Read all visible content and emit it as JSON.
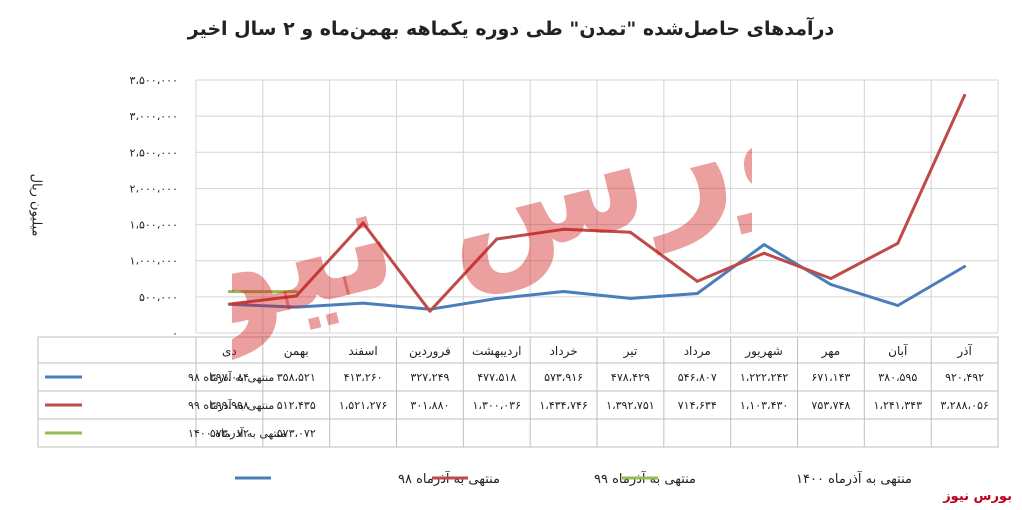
{
  "title": "درآمدهای حاصل‌شده \"تمدن\" طی دوره یکماهه بهمن‌ماه و ۲ سال اخیر",
  "brand": "بورس نیوز",
  "watermark": "بورس نیوز",
  "colors": {
    "s98": "#4a7ebb",
    "s99": "#be4b48",
    "s1400": "#98b954",
    "grid": "#d4d4d4"
  },
  "chart_data": {
    "type": "line",
    "ylabel": "میلیون ریال",
    "ylim": [
      0,
      3500000
    ],
    "yticks": [
      0,
      500000,
      1000000,
      1500000,
      2000000,
      2500000,
      3000000,
      3500000
    ],
    "ytick_labels": [
      "۰",
      "۵۰۰،۰۰۰",
      "۱،۰۰۰،۰۰۰",
      "۱،۵۰۰،۰۰۰",
      "۲،۰۰۰،۰۰۰",
      "۲،۵۰۰،۰۰۰",
      "۳،۰۰۰،۰۰۰",
      "۳،۵۰۰،۰۰۰"
    ],
    "grid": true,
    "legend": "bottom",
    "categories": [
      "دی",
      "بهمن",
      "اسفند",
      "فروردین",
      "اردیبهشت",
      "خرداد",
      "تیر",
      "مرداد",
      "شهریور",
      "مهر",
      "آبان",
      "آذر"
    ],
    "series": [
      {
        "name": "منتهی به آذرماه ۹۸",
        "color": "#4a7ebb",
        "values": [
          397084,
          358521,
          413260,
          327249,
          477518,
          573916,
          478429,
          546807,
          1222242,
          671143,
          380595,
          920492
        ],
        "labels": [
          "۳۹۷،۰۸۴",
          "۳۵۸،۵۲۱",
          "۴۱۳،۲۶۰",
          "۳۲۷،۲۴۹",
          "۴۷۷،۵۱۸",
          "۵۷۳،۹۱۶",
          "۴۷۸،۴۲۹",
          "۵۴۶،۸۰۷",
          "۱،۲۲۲،۲۴۲",
          "۶۷۱،۱۴۳",
          "۳۸۰،۵۹۵",
          "۹۲۰،۴۹۲"
        ]
      },
      {
        "name": "منتهی به آذرماه ۹۹",
        "color": "#be4b48",
        "values": [
          399998,
          512435,
          1521276,
          301880,
          1300036,
          1434746,
          1392751,
          714634,
          1103430,
          753748,
          1241343,
          3288056
        ],
        "labels": [
          "۳۹۹،۹۹۸",
          "۵۱۲،۴۳۵",
          "۱،۵۲۱،۲۷۶",
          "۳۰۱،۸۸۰",
          "۱،۳۰۰،۰۳۶",
          "۱،۴۳۴،۷۴۶",
          "۱،۳۹۲،۷۵۱",
          "۷۱۴،۶۳۴",
          "۱،۱۰۳،۴۳۰",
          "۷۵۳،۷۴۸",
          "۱،۲۴۱،۳۴۳",
          "۳،۲۸۸،۰۵۶"
        ]
      },
      {
        "name": "منتهی به آذرماه ۱۴۰۰",
        "color": "#98b954",
        "values": [
          573072,
          573072,
          null,
          null,
          null,
          null,
          null,
          null,
          null,
          null,
          null,
          null
        ],
        "labels": [
          "۵۷۳،۰۷۲",
          "۵۷۳،۰۷۲",
          "",
          "",
          "",
          "",
          "",
          "",
          "",
          "",
          "",
          ""
        ]
      }
    ]
  }
}
